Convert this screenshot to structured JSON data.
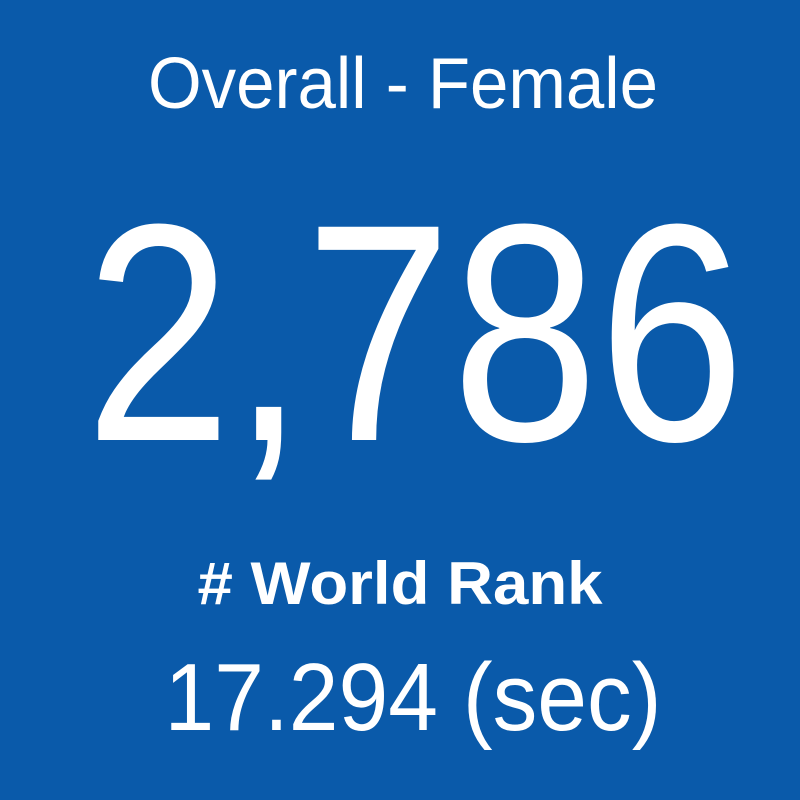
{
  "header": {
    "title": "Overall - Female"
  },
  "metric": {
    "value": "2,786",
    "label": "# World Rank",
    "detail": "17.294 (sec)"
  }
}
